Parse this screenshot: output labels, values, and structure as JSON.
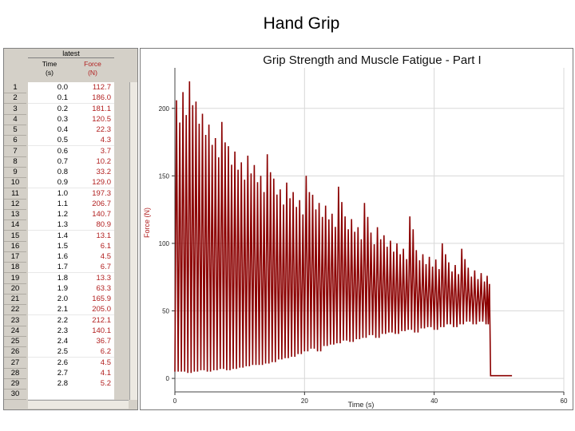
{
  "slide": {
    "title": "Hand Grip"
  },
  "table": {
    "dataset_name": "latest",
    "columns": [
      {
        "name": "Time",
        "unit": "(s)"
      },
      {
        "name": "Force",
        "unit": "(N)"
      }
    ],
    "rows": [
      {
        "n": "1",
        "time": "0.0",
        "force": "112.7"
      },
      {
        "n": "2",
        "time": "0.1",
        "force": "186.0"
      },
      {
        "n": "3",
        "time": "0.2",
        "force": "181.1"
      },
      {
        "n": "4",
        "time": "0.3",
        "force": "120.5"
      },
      {
        "n": "5",
        "time": "0.4",
        "force": "22.3"
      },
      {
        "n": "6",
        "time": "0.5",
        "force": "4.3"
      },
      {
        "n": "7",
        "time": "0.6",
        "force": "3.7"
      },
      {
        "n": "8",
        "time": "0.7",
        "force": "10.2"
      },
      {
        "n": "9",
        "time": "0.8",
        "force": "33.2"
      },
      {
        "n": "10",
        "time": "0.9",
        "force": "129.0"
      },
      {
        "n": "11",
        "time": "1.0",
        "force": "197.3"
      },
      {
        "n": "12",
        "time": "1.1",
        "force": "206.7"
      },
      {
        "n": "13",
        "time": "1.2",
        "force": "140.7"
      },
      {
        "n": "14",
        "time": "1.3",
        "force": "80.9"
      },
      {
        "n": "15",
        "time": "1.4",
        "force": "13.1"
      },
      {
        "n": "16",
        "time": "1.5",
        "force": "6.1"
      },
      {
        "n": "17",
        "time": "1.6",
        "force": "4.5"
      },
      {
        "n": "18",
        "time": "1.7",
        "force": "6.7"
      },
      {
        "n": "19",
        "time": "1.8",
        "force": "13.3"
      },
      {
        "n": "20",
        "time": "1.9",
        "force": "63.3"
      },
      {
        "n": "21",
        "time": "2.0",
        "force": "165.9"
      },
      {
        "n": "22",
        "time": "2.1",
        "force": "205.0"
      },
      {
        "n": "23",
        "time": "2.2",
        "force": "212.1"
      },
      {
        "n": "24",
        "time": "2.3",
        "force": "140.1"
      },
      {
        "n": "25",
        "time": "2.4",
        "force": "36.7"
      },
      {
        "n": "26",
        "time": "2.5",
        "force": "6.2"
      },
      {
        "n": "27",
        "time": "2.6",
        "force": "4.5"
      },
      {
        "n": "28",
        "time": "2.7",
        "force": "4.1"
      },
      {
        "n": "29",
        "time": "2.8",
        "force": "5.2"
      },
      {
        "n": "30",
        "time": "",
        "force": ""
      }
    ]
  },
  "chart_data": {
    "type": "line",
    "title": "Grip Strength and Muscle Fatigue - Part I",
    "xlabel": "Time (s)",
    "ylabel": "Force (N)",
    "xlim": [
      0,
      60
    ],
    "ylim": [
      -10,
      230
    ],
    "xticks": [
      "0",
      "20",
      "40",
      "60"
    ],
    "yticks": [
      "0",
      "50",
      "100",
      "150",
      "200"
    ],
    "grid": true,
    "legend": "none",
    "series_color": "#8b0000",
    "series": [
      {
        "x": [
          0,
          1,
          2,
          3,
          4,
          5,
          6,
          7,
          8,
          9,
          10,
          11,
          12,
          13,
          14,
          15,
          16,
          17,
          18,
          19,
          20,
          21,
          22,
          23,
          24,
          25,
          26,
          27,
          28,
          29,
          30,
          31,
          32,
          33,
          34,
          35,
          36,
          37,
          38,
          39,
          40,
          41,
          42,
          43,
          44,
          45,
          46,
          47,
          48,
          48.7,
          50,
          52
        ],
        "peaks": [
          206,
          212,
          220,
          205,
          196,
          188,
          178,
          190,
          172,
          168,
          160,
          165,
          158,
          150,
          166,
          148,
          140,
          145,
          138,
          132,
          150,
          136,
          130,
          128,
          122,
          142,
          120,
          118,
          112,
          130,
          108,
          112,
          106,
          102,
          100,
          96,
          120,
          95,
          92,
          90,
          88,
          100,
          86,
          84,
          96,
          82,
          80,
          78,
          76,
          2,
          2,
          2
        ],
        "troughs": [
          5,
          5,
          4,
          5,
          6,
          5,
          6,
          7,
          6,
          7,
          8,
          9,
          10,
          10,
          11,
          12,
          14,
          15,
          16,
          18,
          20,
          22,
          20,
          24,
          25,
          26,
          28,
          27,
          29,
          30,
          32,
          30,
          33,
          34,
          33,
          35,
          36,
          34,
          37,
          38,
          36,
          38,
          40,
          38,
          40,
          42,
          40,
          42,
          40,
          2,
          2,
          2
        ]
      }
    ]
  }
}
